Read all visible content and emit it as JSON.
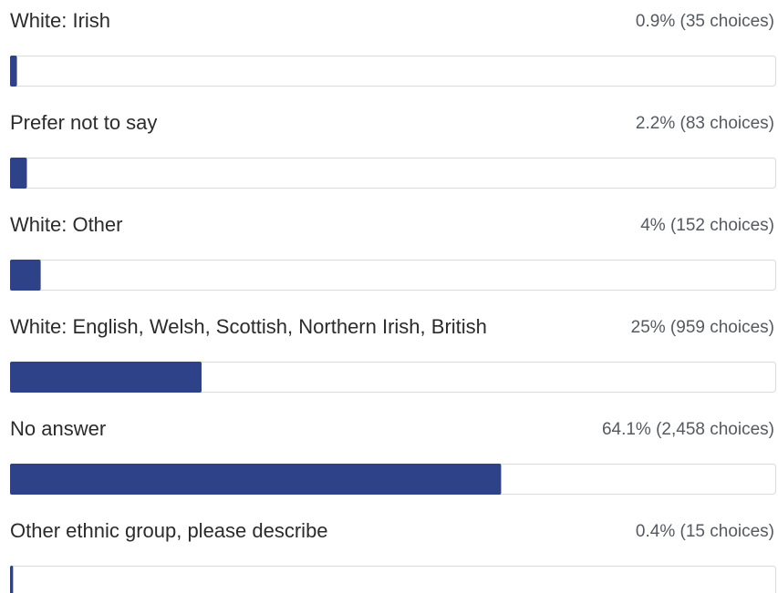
{
  "chart_data": {
    "type": "bar",
    "orientation": "horizontal",
    "categories": [
      "White: Irish",
      "Prefer not to say",
      "White: Other",
      "White: English, Welsh, Scottish, Northern Irish, British",
      "No answer",
      "Other ethnic group, please describe"
    ],
    "values": [
      0.9,
      2.2,
      4,
      25,
      64.1,
      0.4
    ],
    "value_labels": [
      "0.9% (35 choices)",
      "2.2% (83 choices)",
      "4% (152 choices)",
      "25% (959 choices)",
      "64.1% (2,458 choices)",
      "0.4% (15 choices)"
    ],
    "color": "#2d4289",
    "xlim": [
      0,
      100
    ]
  }
}
